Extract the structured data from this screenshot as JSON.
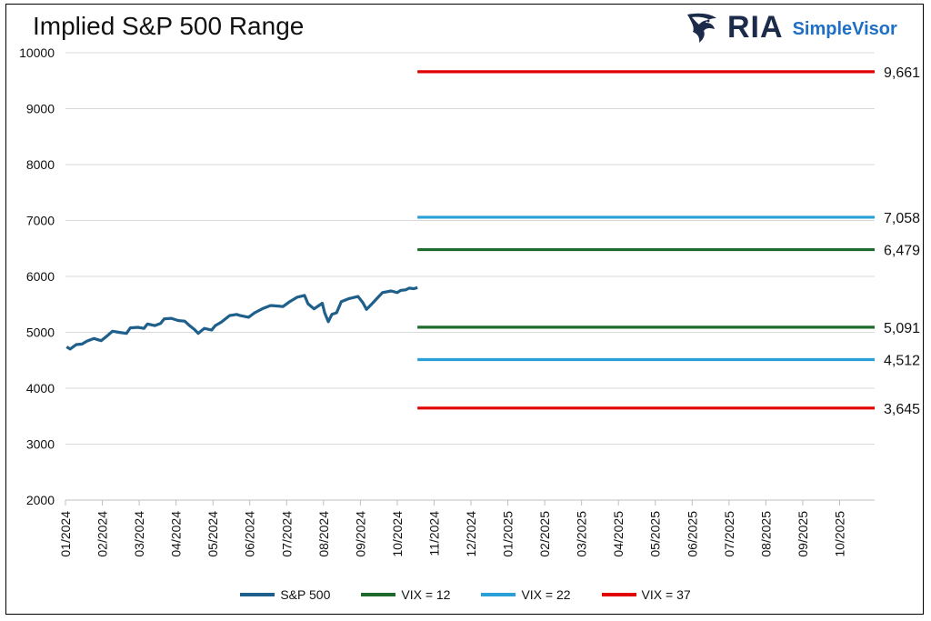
{
  "header": {
    "title": "Implied S&P 500 Range",
    "logo_text": "RIA",
    "logo_subtext": "SimpleVisor"
  },
  "chart_data": {
    "type": "line",
    "title": "Implied S&P 500 Range",
    "xlabel": "",
    "ylabel": "",
    "ylim": [
      2000,
      10000
    ],
    "yticks": [
      "2000",
      "3000",
      "4000",
      "5000",
      "6000",
      "7000",
      "8000",
      "9000",
      "10000"
    ],
    "xticks": [
      "01/2024",
      "02/2024",
      "03/2024",
      "04/2024",
      "05/2024",
      "06/2024",
      "07/2024",
      "08/2024",
      "09/2024",
      "10/2024",
      "11/2024",
      "12/2024",
      "01/2025",
      "02/2025",
      "03/2025",
      "04/2025",
      "05/2025",
      "06/2025",
      "07/2025",
      "08/2025",
      "09/2025",
      "10/2025"
    ],
    "legend_position": "bottom",
    "grid": "horizontal",
    "series": [
      {
        "name": "S&P 500",
        "color": "#1f5f8b",
        "x": [
          "2024-01-02",
          "2024-01-05",
          "2024-01-10",
          "2024-01-15",
          "2024-01-19",
          "2024-01-25",
          "2024-01-31",
          "2024-02-05",
          "2024-02-09",
          "2024-02-14",
          "2024-02-20",
          "2024-02-23",
          "2024-02-29",
          "2024-03-05",
          "2024-03-08",
          "2024-03-14",
          "2024-03-19",
          "2024-03-22",
          "2024-03-28",
          "2024-04-03",
          "2024-04-08",
          "2024-04-12",
          "2024-04-16",
          "2024-04-19",
          "2024-04-24",
          "2024-04-30",
          "2024-05-03",
          "2024-05-08",
          "2024-05-15",
          "2024-05-21",
          "2024-05-24",
          "2024-05-31",
          "2024-06-05",
          "2024-06-12",
          "2024-06-18",
          "2024-06-24",
          "2024-06-28",
          "2024-07-03",
          "2024-07-10",
          "2024-07-16",
          "2024-07-19",
          "2024-07-24",
          "2024-07-31",
          "2024-08-02",
          "2024-08-05",
          "2024-08-08",
          "2024-08-12",
          "2024-08-16",
          "2024-08-22",
          "2024-08-30",
          "2024-09-03",
          "2024-09-06",
          "2024-09-10",
          "2024-09-16",
          "2024-09-19",
          "2024-09-26",
          "2024-10-01",
          "2024-10-04",
          "2024-10-08",
          "2024-10-11",
          "2024-10-15",
          "2024-10-18"
        ],
        "values": [
          4740,
          4700,
          4780,
          4790,
          4840,
          4890,
          4850,
          4940,
          5020,
          5000,
          4980,
          5080,
          5090,
          5070,
          5150,
          5120,
          5160,
          5240,
          5250,
          5210,
          5200,
          5120,
          5050,
          4980,
          5070,
          5040,
          5120,
          5180,
          5300,
          5320,
          5300,
          5270,
          5350,
          5430,
          5480,
          5470,
          5460,
          5540,
          5630,
          5660,
          5510,
          5420,
          5520,
          5350,
          5190,
          5320,
          5350,
          5550,
          5600,
          5640,
          5530,
          5410,
          5500,
          5640,
          5710,
          5740,
          5710,
          5750,
          5760,
          5790,
          5780,
          5800
        ]
      },
      {
        "name": "VIX = 12",
        "color": "#1e6b2e",
        "upper": 6479,
        "lower": 5091,
        "upper_label": "6,479",
        "lower_label": "5,091",
        "x_start": "2024-10-18",
        "x_end": "2025-10-31"
      },
      {
        "name": "VIX = 22",
        "color": "#2a9fd8",
        "upper": 7058,
        "lower": 4512,
        "upper_label": "7,058",
        "lower_label": "4,512",
        "x_start": "2024-10-18",
        "x_end": "2025-10-31"
      },
      {
        "name": "VIX = 37",
        "color": "#e00000",
        "upper": 9661,
        "lower": 3645,
        "upper_label": "9,661",
        "lower_label": "3,645",
        "x_start": "2024-10-18",
        "x_end": "2025-10-31"
      }
    ]
  }
}
